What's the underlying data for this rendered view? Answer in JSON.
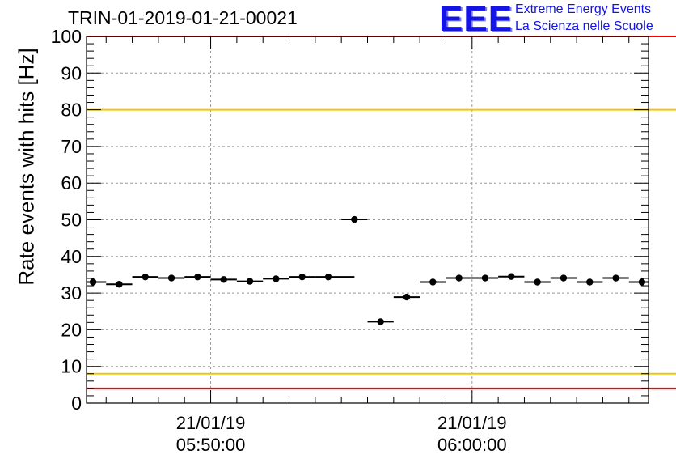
{
  "header": {
    "title": "TRIN-01-2019-01-21-00021",
    "logo_text": "EEE",
    "logo_line1": "Extreme Energy Events",
    "logo_line2": "La Scienza nelle Scuole"
  },
  "colors": {
    "red_line": "#ff0000",
    "yellow_line": "#f0c800",
    "grid": "#999999",
    "marker": "#000000",
    "logo": "#1414e6"
  },
  "chart_data": {
    "type": "scatter",
    "title": "TRIN-01-2019-01-21-00021",
    "xlabel": "",
    "ylabel": "Rate events with hits [Hz]",
    "ylim": [
      0,
      100
    ],
    "yticks": [
      0,
      10,
      20,
      30,
      40,
      50,
      60,
      70,
      80,
      90,
      100
    ],
    "xrange_minutes": [
      0,
      21.5
    ],
    "xtick_labels": [
      {
        "x_min": 4.75,
        "date": "21/01/19",
        "time": "05:50:00"
      },
      {
        "x_min": 14.75,
        "date": "21/01/19",
        "time": "06:00:00"
      }
    ],
    "x_minor_step_minutes": 1,
    "grid": true,
    "reference_lines": [
      {
        "y": 100,
        "color": "red"
      },
      {
        "y": 4,
        "color": "red"
      },
      {
        "y": 80,
        "color": "yellow"
      },
      {
        "y": 8,
        "color": "yellow"
      }
    ],
    "bin_width_minutes": 1,
    "x": [
      0.25,
      1.25,
      2.25,
      3.25,
      4.25,
      5.25,
      6.25,
      7.25,
      8.25,
      9.25,
      10.25,
      11.25,
      12.25,
      13.25,
      14.25,
      15.25,
      16.25,
      17.25,
      18.25,
      19.25,
      20.25,
      21.25
    ],
    "y": [
      33.0,
      32.4,
      34.4,
      34.1,
      34.4,
      33.7,
      33.2,
      33.9,
      34.4,
      34.4,
      50.1,
      22.2,
      28.9,
      33.0,
      34.1,
      34.1,
      34.5,
      33.0,
      34.1,
      33.0,
      34.1,
      33.0
    ],
    "x_err_left": [
      0.25,
      0.5,
      0.5,
      0.5,
      0.5,
      0.5,
      0.5,
      0.5,
      0.5,
      0.5,
      0.5,
      0.5,
      0.5,
      0.5,
      0.5,
      0.5,
      0.5,
      0.5,
      0.5,
      0.5,
      0.5,
      0.5
    ],
    "x_err_right": [
      0.5,
      0.5,
      0.5,
      0.5,
      0.5,
      0.5,
      0.5,
      0.5,
      0.5,
      1.0,
      0.5,
      0.5,
      0.5,
      0.5,
      0.5,
      0.5,
      0.5,
      0.5,
      0.5,
      0.5,
      0.5,
      0.25
    ]
  }
}
